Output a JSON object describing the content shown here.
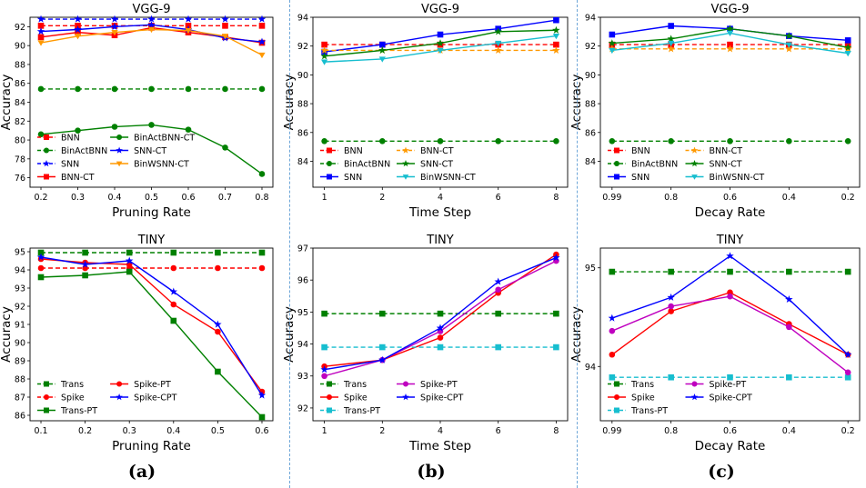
{
  "panels": [
    {
      "label": "(a)"
    },
    {
      "label": "(b)"
    },
    {
      "label": "(c)"
    }
  ],
  "chart_data": [
    {
      "type": "line",
      "title": "VGG-9",
      "xlabel": "Pruning Rate",
      "ylabel": "Accuracy",
      "x": [
        0.2,
        0.3,
        0.4,
        0.5,
        0.6,
        0.7,
        0.8
      ],
      "xticks": [
        "0.2",
        "0.3",
        "0.4",
        "0.5",
        "0.6",
        "0.7",
        "0.8"
      ],
      "ylim": [
        75,
        93
      ],
      "yticks": [
        76,
        78,
        80,
        82,
        84,
        86,
        88,
        90,
        92
      ],
      "legend_loc": "lower-left",
      "legend_cols": 2,
      "series": [
        {
          "name": "BNN",
          "color": "#ff0000",
          "dashed": true,
          "marker": "square",
          "values": [
            92.1,
            92.1,
            92.1,
            92.1,
            92.1,
            92.1,
            92.1
          ]
        },
        {
          "name": "BinActBNN",
          "color": "#008000",
          "dashed": true,
          "marker": "circle",
          "values": [
            85.4,
            85.4,
            85.4,
            85.4,
            85.4,
            85.4,
            85.4
          ]
        },
        {
          "name": "SNN",
          "color": "#0000ff",
          "dashed": true,
          "marker": "star",
          "values": [
            92.8,
            92.8,
            92.8,
            92.8,
            92.8,
            92.8,
            92.8
          ]
        },
        {
          "name": "BNN-CT",
          "color": "#ff0000",
          "dashed": false,
          "marker": "square",
          "values": [
            90.9,
            91.4,
            91.1,
            91.9,
            91.4,
            90.9,
            90.3
          ]
        },
        {
          "name": "BinActBNN-CT",
          "color": "#008000",
          "dashed": false,
          "marker": "circle",
          "values": [
            80.6,
            81.0,
            81.4,
            81.6,
            81.1,
            79.2,
            76.4
          ]
        },
        {
          "name": "SNN-CT",
          "color": "#0000ff",
          "dashed": false,
          "marker": "star",
          "values": [
            91.5,
            91.7,
            92.0,
            92.2,
            91.7,
            90.8,
            90.4
          ]
        },
        {
          "name": "BinWSNN-CT",
          "color": "#ff9900",
          "dashed": false,
          "marker": "tri_down",
          "values": [
            90.3,
            91.0,
            91.4,
            91.7,
            91.6,
            91.0,
            89.0
          ]
        }
      ]
    },
    {
      "type": "line",
      "title": "VGG-9",
      "xlabel": "Time Step",
      "ylabel": "Accuracy",
      "x": [
        1,
        2,
        4,
        6,
        8
      ],
      "xticks": [
        "1",
        "2",
        "4",
        "6",
        "8"
      ],
      "ylim": [
        82.2,
        94
      ],
      "yticks": [
        84,
        86,
        88,
        90,
        92,
        94
      ],
      "legend_loc": "lower-left",
      "legend_cols": 2,
      "series": [
        {
          "name": "BNN",
          "color": "#ff0000",
          "dashed": true,
          "marker": "square",
          "values": [
            92.1,
            92.1,
            92.1,
            92.1,
            92.1
          ]
        },
        {
          "name": "BinActBNN",
          "color": "#008000",
          "dashed": true,
          "marker": "circle",
          "values": [
            85.4,
            85.4,
            85.4,
            85.4,
            85.4
          ]
        },
        {
          "name": "SNN",
          "color": "#0000ff",
          "dashed": false,
          "marker": "square",
          "values": [
            91.6,
            92.1,
            92.8,
            93.2,
            93.8
          ]
        },
        {
          "name": "BNN-CT",
          "color": "#ff9900",
          "dashed": true,
          "marker": "star",
          "values": [
            91.7,
            91.7,
            91.7,
            91.7,
            91.7
          ]
        },
        {
          "name": "SNN-CT",
          "color": "#008000",
          "dashed": false,
          "marker": "star",
          "values": [
            91.3,
            91.7,
            92.2,
            93.0,
            93.1
          ]
        },
        {
          "name": "BinWSNN-CT",
          "color": "#17becf",
          "dashed": false,
          "marker": "tri_down",
          "values": [
            90.9,
            91.1,
            91.7,
            92.2,
            92.7
          ]
        }
      ]
    },
    {
      "type": "line",
      "title": "VGG-9",
      "xlabel": "Decay Rate",
      "ylabel": "Accuracy",
      "x": [
        0.99,
        0.8,
        0.6,
        0.4,
        0.2
      ],
      "xticks": [
        "0.99",
        "0.8",
        "0.6",
        "0.4",
        "0.2"
      ],
      "ylim": [
        82.2,
        94
      ],
      "yticks": [
        84,
        86,
        88,
        90,
        92,
        94
      ],
      "legend_loc": "lower-left",
      "legend_cols": 2,
      "series": [
        {
          "name": "BNN",
          "color": "#ff0000",
          "dashed": true,
          "marker": "square",
          "values": [
            92.1,
            92.1,
            92.1,
            92.1,
            92.1
          ]
        },
        {
          "name": "BinActBNN",
          "color": "#008000",
          "dashed": true,
          "marker": "circle",
          "values": [
            85.4,
            85.4,
            85.4,
            85.4,
            85.4
          ]
        },
        {
          "name": "SNN",
          "color": "#0000ff",
          "dashed": false,
          "marker": "square",
          "values": [
            92.8,
            93.4,
            93.2,
            92.7,
            92.4
          ]
        },
        {
          "name": "BNN-CT",
          "color": "#ff9900",
          "dashed": true,
          "marker": "star",
          "values": [
            91.8,
            91.8,
            91.8,
            91.8,
            91.8
          ]
        },
        {
          "name": "SNN-CT",
          "color": "#008000",
          "dashed": false,
          "marker": "star",
          "values": [
            92.2,
            92.5,
            93.2,
            92.7,
            91.9
          ]
        },
        {
          "name": "BinWSNN-CT",
          "color": "#17becf",
          "dashed": false,
          "marker": "tri_down",
          "values": [
            91.7,
            92.2,
            92.9,
            92.1,
            91.5
          ]
        }
      ]
    },
    {
      "type": "line",
      "title": "TINY",
      "xlabel": "Pruning Rate",
      "ylabel": "Accuracy",
      "x": [
        0.1,
        0.2,
        0.3,
        0.4,
        0.5,
        0.6
      ],
      "xticks": [
        "0.1",
        "0.2",
        "0.3",
        "0.4",
        "0.5",
        "0.6"
      ],
      "ylim": [
        85.7,
        95.2
      ],
      "yticks": [
        86,
        87,
        88,
        89,
        90,
        91,
        92,
        93,
        94,
        95
      ],
      "legend_loc": "lower-left",
      "legend_cols": 2,
      "series": [
        {
          "name": "Trans",
          "color": "#008000",
          "dashed": true,
          "marker": "square",
          "values": [
            94.95,
            94.95,
            94.95,
            94.95,
            94.95,
            94.95
          ]
        },
        {
          "name": "Spike",
          "color": "#ff0000",
          "dashed": true,
          "marker": "circle",
          "values": [
            94.1,
            94.1,
            94.1,
            94.1,
            94.1,
            94.1
          ]
        },
        {
          "name": "Trans-PT",
          "color": "#008000",
          "dashed": false,
          "marker": "square",
          "values": [
            93.6,
            93.7,
            93.9,
            91.2,
            88.4,
            85.9
          ]
        },
        {
          "name": "Spike-PT",
          "color": "#ff0000",
          "dashed": false,
          "marker": "circle",
          "values": [
            94.6,
            94.4,
            94.3,
            92.1,
            90.6,
            87.3
          ]
        },
        {
          "name": "Spike-CPT",
          "color": "#0000ff",
          "dashed": false,
          "marker": "star",
          "values": [
            94.7,
            94.3,
            94.5,
            92.8,
            91.0,
            87.1
          ]
        }
      ]
    },
    {
      "type": "line",
      "title": "TINY",
      "xlabel": "Time Step",
      "ylabel": "Accuracy",
      "x": [
        1,
        2,
        4,
        6,
        8
      ],
      "xticks": [
        "1",
        "2",
        "4",
        "6",
        "8"
      ],
      "ylim": [
        91.6,
        97
      ],
      "yticks": [
        92,
        93,
        94,
        95,
        96,
        97
      ],
      "legend_loc": "lower-left",
      "legend_cols": 2,
      "series": [
        {
          "name": "Trans",
          "color": "#008000",
          "dashed": true,
          "marker": "square",
          "values": [
            94.95,
            94.95,
            94.95,
            94.95,
            94.95
          ]
        },
        {
          "name": "Spike",
          "color": "#ff0000",
          "dashed": false,
          "marker": "circle",
          "values": [
            93.3,
            93.5,
            94.2,
            95.6,
            96.8
          ]
        },
        {
          "name": "Trans-PT",
          "color": "#17becf",
          "dashed": true,
          "marker": "square",
          "values": [
            93.9,
            93.9,
            93.9,
            93.9,
            93.9
          ]
        },
        {
          "name": "Spike-PT",
          "color": "#bf00bf",
          "dashed": false,
          "marker": "circle",
          "values": [
            93.0,
            93.5,
            94.4,
            95.7,
            96.6
          ]
        },
        {
          "name": "Spike-CPT",
          "color": "#0000ff",
          "dashed": false,
          "marker": "star",
          "values": [
            93.2,
            93.5,
            94.5,
            95.95,
            96.7
          ]
        }
      ]
    },
    {
      "type": "line",
      "title": "TINY",
      "xlabel": "Decay Rate",
      "ylabel": "Accuracy",
      "x": [
        0.99,
        0.8,
        0.6,
        0.4,
        0.2
      ],
      "xticks": [
        "0.99",
        "0.8",
        "0.6",
        "0.4",
        "0.2"
      ],
      "ylim": [
        93.45,
        95.2
      ],
      "yticks": [
        94,
        95
      ],
      "legend_loc": "lower-left",
      "legend_cols": 2,
      "series": [
        {
          "name": "Trans",
          "color": "#008000",
          "dashed": true,
          "marker": "square",
          "values": [
            94.96,
            94.96,
            94.96,
            94.96,
            94.96
          ]
        },
        {
          "name": "Spike",
          "color": "#ff0000",
          "dashed": false,
          "marker": "circle",
          "values": [
            94.12,
            94.56,
            94.75,
            94.43,
            94.12
          ]
        },
        {
          "name": "Trans-PT",
          "color": "#17becf",
          "dashed": true,
          "marker": "square",
          "values": [
            93.89,
            93.89,
            93.89,
            93.89,
            93.89
          ]
        },
        {
          "name": "Spike-PT",
          "color": "#bf00bf",
          "dashed": false,
          "marker": "circle",
          "values": [
            94.36,
            94.61,
            94.71,
            94.4,
            93.94
          ]
        },
        {
          "name": "Spike-CPT",
          "color": "#0000ff",
          "dashed": false,
          "marker": "star",
          "values": [
            94.49,
            94.7,
            95.12,
            94.68,
            94.12
          ]
        }
      ]
    }
  ]
}
